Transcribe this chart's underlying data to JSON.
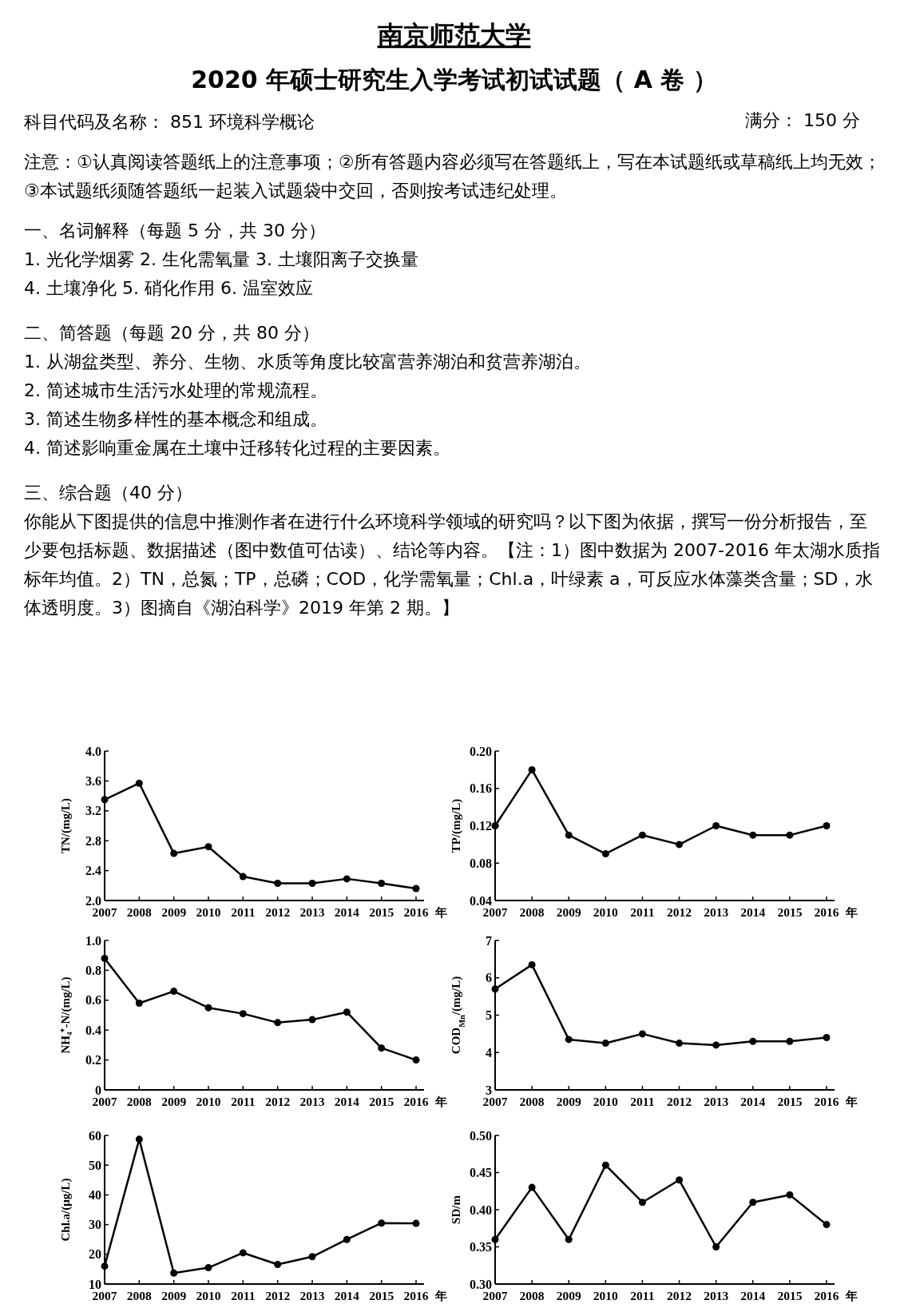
{
  "chart_data": [
    {
      "type": "other",
      "title": "南京师范大学",
      "subtitle": "2020 年硕士研究生入学考试初试试题（   A 卷 ）",
      "annotations": [
        "科目代码及名称：  851 环境科学概论",
        "满分：  150   分",
        "注意：①认真阅读答题纸上的注意事项；②所有答题内容必须写在答题纸上，写在本试题纸或草稿纸上均无效；③本试题纸须随答题纸一起装入试题袋中交回，否则按考试违纪处理。",
        "一、名词解释（每题 5 分，共 30 分）",
        "1. 光化学烟雾   2. 生化需氧量   3. 土壤阳离子交换量",
        "4. 土壤净化     5. 硝化作用     6. 温室效应",
        "二、简答题（每题 20 分，共 80 分）",
        "1. 从湖盆类型、养分、生物、水质等角度比较富营养湖泊和贫营养湖泊。",
        "2. 简述城市生活污水处理的常规流程。",
        "3. 简述生物多样性的基本概念和组成。",
        "4. 简述影响重金属在土壤中迁移转化过程的主要因素。",
        "三、综合题（40 分）",
        "你能从下图提供的信息中推测作者在进行什么环境科学领域的研究吗？以下图为依据，撰写一份分析报告，至少要包括标题、数据描述（图中数值可估读）、结论等内容。【注：1）图中数据为 2007-2016 年太湖水质指标年均值。2）TN，总氮；TP，总磷；COD，化学需氧量；Chl.a，叶绿素 a，可反应水体藻类含量；SD，水体透明度。3）图摘自《湖泊科学》2019 年第 2 期。】"
      ]
    },
    {
      "type": "line",
      "xlabel": "年",
      "ylabel": "TN/(mg/L)",
      "categories": [
        "2007",
        "2008",
        "2009",
        "2010",
        "2011",
        "2012",
        "2013",
        "2014",
        "2015",
        "2016"
      ],
      "ylim": [
        2.0,
        4.0
      ],
      "yticks": [
        {
          "value": 2.0,
          "label": "2.0"
        },
        2.4,
        2.8,
        3.2,
        3.6,
        {
          "value": 4.0,
          "label": "4.0"
        }
      ],
      "marker": "circle",
      "grid": false,
      "series": [
        {
          "color": "#000000",
          "values": [
            3.35,
            3.57,
            2.63,
            2.72,
            2.32,
            2.23,
            2.23,
            2.29,
            2.23,
            2.16
          ]
        }
      ]
    },
    {
      "type": "line",
      "xlabel": "年",
      "ylabel": "TP/(mg/L)",
      "categories": [
        "2007",
        "2008",
        "2009",
        "2010",
        "2011",
        "2012",
        "2013",
        "2014",
        "2015",
        "2016"
      ],
      "ylim": [
        0.04,
        0.2
      ],
      "yticks": [
        0.04,
        0.08,
        0.12,
        0.16,
        {
          "value": 0.2,
          "label": "0.20"
        }
      ],
      "marker": "circle",
      "grid": false,
      "series": [
        {
          "color": "#000000",
          "values": [
            0.12,
            0.18,
            0.11,
            0.09,
            0.11,
            0.1,
            0.12,
            0.11,
            0.11,
            0.12
          ]
        }
      ]
    },
    {
      "type": "line",
      "xlabel": "年",
      "ylabel": "NH₄⁺-N/(mg/L)",
      "categories": [
        "2007",
        "2008",
        "2009",
        "2010",
        "2011",
        "2012",
        "2013",
        "2014",
        "2015",
        "2016"
      ],
      "ylim": [
        0,
        1.0
      ],
      "yticks": [
        0,
        0.2,
        0.4,
        0.6,
        0.8,
        {
          "value": 1.0,
          "label": "1.0"
        }
      ],
      "marker": "circle",
      "grid": false,
      "series": [
        {
          "color": "#000000",
          "values": [
            0.88,
            0.58,
            0.66,
            0.55,
            0.51,
            0.45,
            0.47,
            0.52,
            0.28,
            0.2
          ]
        }
      ]
    },
    {
      "type": "line",
      "xlabel": "年",
      "ylabel": "COD$_{Mn}$/(mg/L)",
      "categories": [
        "2007",
        "2008",
        "2009",
        "2010",
        "2011",
        "2012",
        "2013",
        "2014",
        "2015",
        "2016"
      ],
      "ylim": [
        3,
        7
      ],
      "yticks": [
        3,
        4,
        5,
        6,
        7
      ],
      "marker": "circle",
      "grid": false,
      "series": [
        {
          "color": "#000000",
          "values": [
            5.7,
            6.35,
            4.35,
            4.25,
            4.5,
            4.25,
            4.2,
            4.3,
            4.3,
            4.4
          ]
        }
      ]
    },
    {
      "type": "line",
      "xlabel": "年",
      "ylabel": "Chl.a/(μg/L)",
      "categories": [
        "2007",
        "2008",
        "2009",
        "2010",
        "2011",
        "2012",
        "2013",
        "2014",
        "2015",
        "2016"
      ],
      "ylim": [
        10,
        60
      ],
      "yticks": [
        10,
        20,
        30,
        40,
        50,
        60
      ],
      "marker": "circle",
      "grid": false,
      "series": [
        {
          "color": "#000000",
          "values": [
            16,
            58.7,
            13.7,
            15.5,
            20.5,
            16.6,
            19.2,
            25,
            30.5,
            30.4
          ]
        }
      ]
    },
    {
      "type": "line",
      "xlabel": "年",
      "ylabel": "SD/m",
      "categories": [
        "2007",
        "2008",
        "2009",
        "2010",
        "2011",
        "2012",
        "2013",
        "2014",
        "2015",
        "2016"
      ],
      "ylim": [
        0.3,
        0.5
      ],
      "yticks": [
        {
          "value": 0.3,
          "label": "0.30"
        },
        0.35,
        {
          "value": 0.4,
          "label": "0.40"
        },
        0.45,
        {
          "value": 0.5,
          "label": "0.50"
        }
      ],
      "marker": "circle",
      "grid": false,
      "series": [
        {
          "color": "#000000",
          "values": [
            0.36,
            0.43,
            0.36,
            0.46,
            0.41,
            0.44,
            0.35,
            0.41,
            0.42,
            0.38
          ]
        }
      ]
    }
  ]
}
